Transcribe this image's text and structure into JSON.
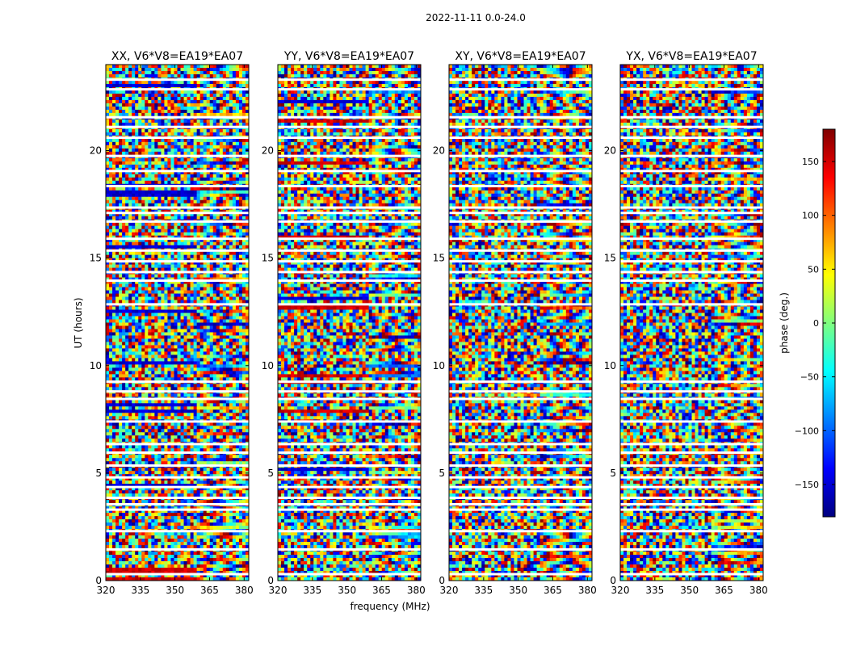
{
  "chart_data": {
    "type": "heatmap",
    "suptitle": "2022-11-11 0.0-24.0",
    "xlabel": "frequency (MHz)",
    "ylabel": "UT (hours)",
    "xlim": [
      320,
      382
    ],
    "ylim": [
      0,
      24
    ],
    "xticks": [
      320,
      335,
      350,
      365,
      380
    ],
    "yticks": [
      0,
      5,
      10,
      15,
      20
    ],
    "colorbar": {
      "label": "phase (deg.)",
      "range": [
        -180,
        180
      ],
      "ticks": [
        150,
        100,
        50,
        0,
        -50,
        -100,
        -150
      ],
      "colormap": "jet",
      "colors": [
        "#00007f",
        "#0000ff",
        "#007fff",
        "#00ffff",
        "#7fff7f",
        "#ffff00",
        "#ff7f00",
        "#ff0000",
        "#7f0000"
      ]
    },
    "panels": [
      {
        "title": "XX, V6*V8=EA19*EA07",
        "correlation": "XX"
      },
      {
        "title": "YY, V6*V8=EA19*EA07",
        "correlation": "YY"
      },
      {
        "title": "XY, V6*V8=EA19*EA07",
        "correlation": "XY"
      },
      {
        "title": "YX, V6*V8=EA19*EA07",
        "correlation": "YX"
      }
    ],
    "flagged_ut_hours": [
      0.3,
      1.45,
      2.3,
      3.3,
      3.55,
      3.85,
      4.35,
      4.8,
      5.35,
      5.95,
      6.35,
      7.4,
      8.45,
      8.8,
      9.25,
      12.85,
      13.95,
      14.35,
      14.85,
      15.35,
      15.9,
      16.7,
      17.1,
      17.35,
      18.35,
      19.05,
      19.75,
      20.6,
      21.1,
      21.55,
      22.85,
      23.3
    ]
  }
}
